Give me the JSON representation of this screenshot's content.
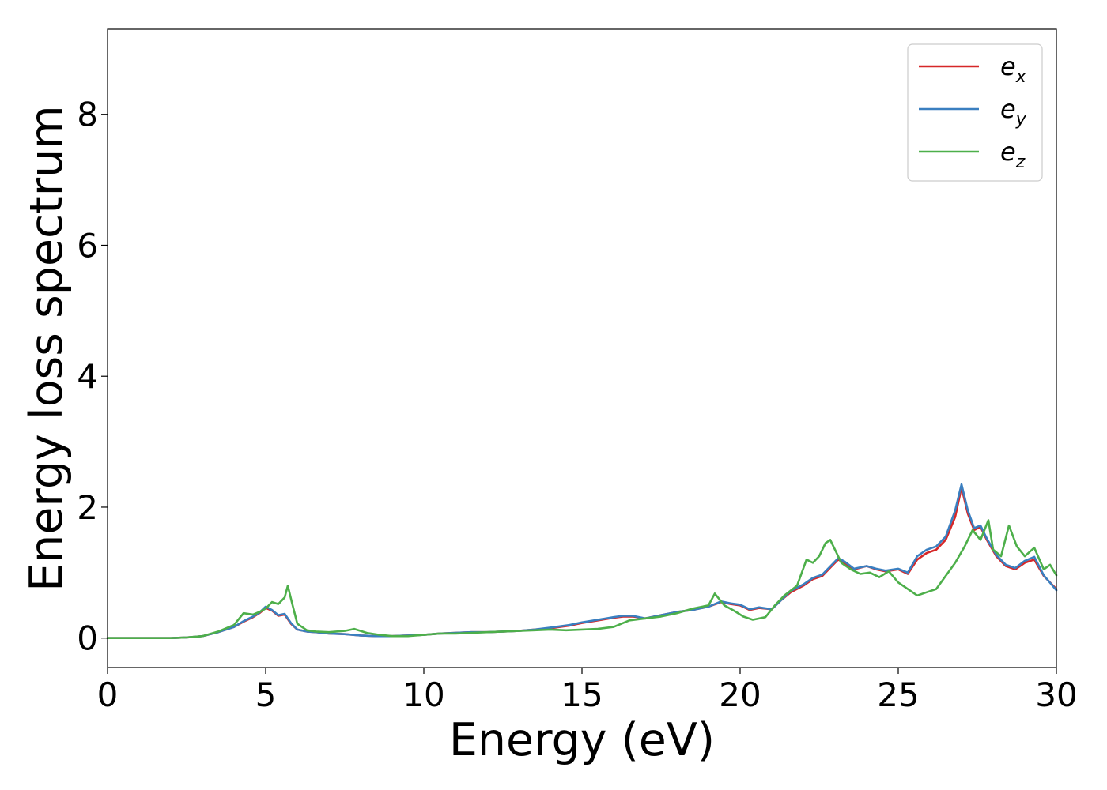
{
  "chart_data": {
    "type": "line",
    "title": "",
    "xlabel": "Energy (eV)",
    "ylabel": "Energy loss spectrum",
    "xlim": [
      0,
      30
    ],
    "ylim": [
      -0.45,
      9.3
    ],
    "xticks": [
      0,
      5,
      10,
      15,
      20,
      25,
      30
    ],
    "yticks": [
      0,
      2,
      4,
      6,
      8
    ],
    "grid": false,
    "legend_position": "top-right",
    "series": [
      {
        "name": "e_x",
        "legend_base": "e",
        "legend_sub": "x",
        "color": "#d62728",
        "x": [
          0,
          1,
          2,
          2.5,
          3,
          3.5,
          4,
          4.3,
          4.6,
          4.8,
          5.0,
          5.2,
          5.4,
          5.6,
          5.8,
          6.0,
          6.3,
          6.6,
          7,
          7.5,
          8,
          8.5,
          9,
          9.5,
          10,
          10.5,
          11,
          11.5,
          12,
          12.5,
          13,
          13.5,
          14,
          14.3,
          14.6,
          15,
          15.5,
          16,
          16.3,
          16.6,
          17,
          17.5,
          18,
          18.5,
          19,
          19.4,
          19.7,
          20,
          20.3,
          20.6,
          21,
          21.3,
          21.6,
          22,
          22.3,
          22.6,
          22.9,
          23.1,
          23.3,
          23.6,
          24,
          24.3,
          24.6,
          25,
          25.3,
          25.6,
          25.9,
          26.2,
          26.5,
          26.8,
          27.0,
          27.2,
          27.4,
          27.6,
          27.8,
          28.1,
          28.4,
          28.7,
          29.0,
          29.3,
          29.6,
          30
        ],
        "y": [
          0,
          0,
          0,
          0.01,
          0.03,
          0.09,
          0.17,
          0.25,
          0.32,
          0.38,
          0.46,
          0.42,
          0.34,
          0.36,
          0.22,
          0.13,
          0.1,
          0.09,
          0.07,
          0.06,
          0.04,
          0.03,
          0.03,
          0.04,
          0.05,
          0.07,
          0.08,
          0.09,
          0.09,
          0.1,
          0.11,
          0.13,
          0.15,
          0.17,
          0.19,
          0.23,
          0.27,
          0.31,
          0.33,
          0.33,
          0.3,
          0.35,
          0.4,
          0.43,
          0.48,
          0.55,
          0.52,
          0.5,
          0.43,
          0.46,
          0.44,
          0.58,
          0.7,
          0.8,
          0.9,
          0.95,
          1.1,
          1.2,
          1.15,
          1.05,
          1.1,
          1.05,
          1.02,
          1.05,
          0.98,
          1.2,
          1.3,
          1.35,
          1.5,
          1.85,
          2.3,
          1.9,
          1.65,
          1.7,
          1.5,
          1.25,
          1.1,
          1.05,
          1.15,
          1.2,
          0.95,
          0.75
        ]
      },
      {
        "name": "e_y",
        "legend_base": "e",
        "legend_sub": "y",
        "color": "#3a7fc0",
        "x": [
          0,
          1,
          2,
          2.5,
          3,
          3.5,
          4,
          4.3,
          4.6,
          4.8,
          5.0,
          5.2,
          5.4,
          5.6,
          5.8,
          6.0,
          6.3,
          6.6,
          7,
          7.5,
          8,
          8.5,
          9,
          9.5,
          10,
          10.5,
          11,
          11.5,
          12,
          12.5,
          13,
          13.5,
          14,
          14.3,
          14.6,
          15,
          15.5,
          16,
          16.3,
          16.6,
          17,
          17.5,
          18,
          18.5,
          19,
          19.4,
          19.7,
          20,
          20.3,
          20.6,
          21,
          21.3,
          21.6,
          22,
          22.3,
          22.6,
          22.9,
          23.1,
          23.3,
          23.6,
          24,
          24.3,
          24.6,
          25,
          25.3,
          25.6,
          25.9,
          26.2,
          26.5,
          26.8,
          27.0,
          27.2,
          27.4,
          27.6,
          27.8,
          28.1,
          28.4,
          28.7,
          29.0,
          29.3,
          29.6,
          30
        ],
        "y": [
          0,
          0,
          0,
          0.01,
          0.03,
          0.09,
          0.17,
          0.26,
          0.33,
          0.39,
          0.48,
          0.43,
          0.35,
          0.37,
          0.23,
          0.13,
          0.1,
          0.09,
          0.07,
          0.06,
          0.04,
          0.03,
          0.03,
          0.04,
          0.05,
          0.07,
          0.08,
          0.09,
          0.09,
          0.1,
          0.11,
          0.13,
          0.16,
          0.18,
          0.2,
          0.24,
          0.28,
          0.32,
          0.34,
          0.34,
          0.3,
          0.35,
          0.4,
          0.43,
          0.48,
          0.56,
          0.53,
          0.51,
          0.44,
          0.47,
          0.44,
          0.58,
          0.72,
          0.82,
          0.92,
          0.97,
          1.12,
          1.22,
          1.17,
          1.06,
          1.1,
          1.06,
          1.03,
          1.06,
          1.0,
          1.25,
          1.35,
          1.4,
          1.55,
          1.95,
          2.35,
          1.95,
          1.68,
          1.72,
          1.52,
          1.27,
          1.12,
          1.07,
          1.18,
          1.24,
          0.96,
          0.73
        ]
      },
      {
        "name": "e_z",
        "legend_base": "e",
        "legend_sub": "z",
        "color": "#4daf4a",
        "x": [
          0,
          1,
          2,
          2.5,
          3,
          3.5,
          4,
          4.3,
          4.6,
          4.8,
          5.0,
          5.2,
          5.4,
          5.6,
          5.7,
          5.8,
          6.0,
          6.3,
          6.6,
          7,
          7.5,
          7.8,
          8.2,
          8.6,
          9,
          9.5,
          10,
          10.5,
          11,
          11.5,
          12,
          12.5,
          13,
          13.5,
          14,
          14.5,
          15,
          15.5,
          16,
          16.5,
          17,
          17.5,
          18,
          18.5,
          19,
          19.2,
          19.5,
          19.8,
          20.1,
          20.4,
          20.8,
          21.1,
          21.4,
          21.8,
          22.1,
          22.3,
          22.5,
          22.7,
          22.85,
          23.0,
          23.2,
          23.5,
          23.8,
          24.1,
          24.4,
          24.7,
          25.0,
          25.3,
          25.6,
          25.9,
          26.2,
          26.5,
          26.8,
          27.1,
          27.35,
          27.6,
          27.85,
          28.0,
          28.25,
          28.5,
          28.75,
          29.0,
          29.3,
          29.6,
          29.8,
          30
        ],
        "y": [
          0,
          0,
          0,
          0.01,
          0.03,
          0.1,
          0.2,
          0.38,
          0.36,
          0.4,
          0.45,
          0.55,
          0.52,
          0.62,
          0.8,
          0.6,
          0.22,
          0.12,
          0.1,
          0.09,
          0.11,
          0.14,
          0.08,
          0.05,
          0.03,
          0.03,
          0.05,
          0.07,
          0.07,
          0.08,
          0.09,
          0.1,
          0.11,
          0.12,
          0.13,
          0.12,
          0.13,
          0.14,
          0.17,
          0.27,
          0.3,
          0.33,
          0.38,
          0.45,
          0.5,
          0.68,
          0.5,
          0.42,
          0.33,
          0.28,
          0.32,
          0.5,
          0.65,
          0.8,
          1.2,
          1.15,
          1.25,
          1.45,
          1.5,
          1.35,
          1.15,
          1.05,
          0.98,
          1.0,
          0.93,
          1.02,
          0.85,
          0.75,
          0.65,
          0.7,
          0.75,
          0.95,
          1.15,
          1.4,
          1.65,
          1.5,
          1.8,
          1.35,
          1.25,
          1.72,
          1.4,
          1.25,
          1.38,
          1.05,
          1.12,
          0.96
        ]
      }
    ]
  }
}
